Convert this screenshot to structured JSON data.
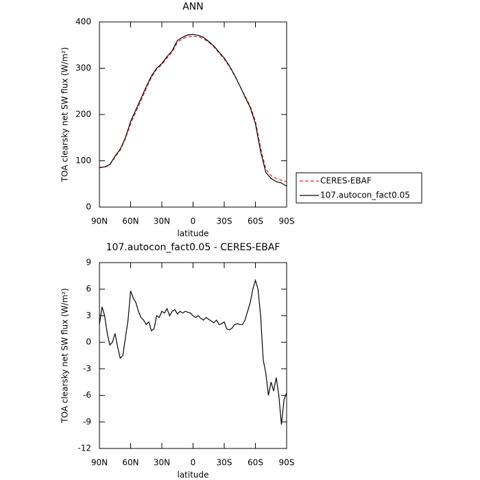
{
  "chart_data": [
    {
      "type": "line",
      "title": "ANN",
      "xlabel": "latitude",
      "ylabel": "TOA clearsky net SW flux (W/m²)",
      "x": [
        90,
        85,
        80,
        75,
        70,
        65,
        60,
        55,
        50,
        45,
        40,
        35,
        30,
        25,
        20,
        15,
        10,
        5,
        0,
        -5,
        -10,
        -15,
        -20,
        -25,
        -30,
        -35,
        -40,
        -45,
        -50,
        -55,
        -60,
        -65,
        -70,
        -75,
        -80,
        -85,
        -90
      ],
      "series": [
        {
          "name": "CERES-EBAF",
          "color": "#e02020",
          "dashed": true,
          "values": [
            86,
            86,
            91,
            108,
            123,
            148,
            180,
            205,
            230,
            256,
            280,
            298,
            308,
            322,
            335,
            356,
            364,
            368,
            369,
            368,
            364,
            356,
            346,
            333,
            320,
            303,
            284,
            262,
            240,
            218,
            186,
            128,
            82,
            68,
            62,
            58,
            55
          ]
        },
        {
          "name": "107.autocon_fact0.05",
          "color": "#000000",
          "dashed": false,
          "values": [
            85,
            87,
            92,
            110,
            125,
            150,
            185,
            210,
            235,
            260,
            283,
            300,
            310,
            325,
            338,
            360,
            367,
            372,
            373,
            371,
            367,
            358,
            348,
            335,
            322,
            305,
            285,
            262,
            238,
            215,
            180,
            120,
            75,
            62,
            55,
            52,
            45
          ]
        }
      ],
      "xlim": [
        90,
        -90
      ],
      "xticks": [
        {
          "value": 90,
          "label": "90N"
        },
        {
          "value": 60,
          "label": "60N"
        },
        {
          "value": 30,
          "label": "30N"
        },
        0,
        {
          "value": -30,
          "label": "30S"
        },
        {
          "value": -60,
          "label": "60S"
        },
        {
          "value": -90,
          "label": "90S"
        }
      ],
      "ylim": [
        0,
        400
      ],
      "yticks": [
        0,
        100,
        200,
        300,
        400
      ],
      "legend": "right"
    },
    {
      "type": "line",
      "title": "107.autocon_fact0.05 - CERES-EBAF",
      "xlabel": "latitude",
      "ylabel": "TOA clearsky net SW flux (W/m²)",
      "color": "#000000",
      "x": [
        90,
        87.5,
        85,
        82.5,
        80,
        77.5,
        75,
        72.5,
        70,
        67.5,
        65,
        62.5,
        60,
        57.5,
        55,
        52.5,
        50,
        47.5,
        45,
        42.5,
        40,
        37.5,
        35,
        32.5,
        30,
        27.5,
        25,
        22.5,
        20,
        17.5,
        15,
        12.5,
        10,
        7.5,
        5,
        2.5,
        0,
        -2.5,
        -5,
        -7.5,
        -10,
        -12.5,
        -15,
        -17.5,
        -20,
        -22.5,
        -25,
        -27.5,
        -30,
        -32.5,
        -35,
        -37.5,
        -40,
        -42.5,
        -45,
        -47.5,
        -50,
        -52.5,
        -55,
        -57.5,
        -60,
        -62.5,
        -65,
        -67.5,
        -70,
        -72.5,
        -75,
        -77.5,
        -80,
        -82.5,
        -85,
        -87.5,
        -90
      ],
      "values": [
        2,
        4,
        3,
        1,
        -0.3,
        0,
        1,
        -0.5,
        -1.8,
        -1.5,
        0.5,
        2.5,
        5.8,
        5,
        4.5,
        3.5,
        2.8,
        2.5,
        2,
        2.3,
        1.3,
        1.5,
        3,
        2.8,
        3.5,
        3.3,
        3.8,
        3,
        3.5,
        3.7,
        3.2,
        3.5,
        3.3,
        3.5,
        3.4,
        3.3,
        3,
        2.8,
        3,
        2.7,
        2.5,
        2.8,
        2.6,
        2.4,
        2.2,
        2.5,
        2,
        2.1,
        2.3,
        1.5,
        1.4,
        1.6,
        2,
        2.1,
        2,
        2,
        2.5,
        3.5,
        4.5,
        6,
        7,
        6,
        3,
        -2,
        -3.5,
        -6,
        -4.5,
        -5.5,
        -4,
        -6,
        -9.3,
        -6.5,
        -5.7
      ],
      "xlim": [
        90,
        -90
      ],
      "xticks": [
        {
          "value": 90,
          "label": "90N"
        },
        {
          "value": 60,
          "label": "60N"
        },
        {
          "value": 30,
          "label": "30N"
        },
        0,
        {
          "value": -30,
          "label": "30S"
        },
        {
          "value": -60,
          "label": "60S"
        },
        {
          "value": -90,
          "label": "90S"
        }
      ],
      "ylim": [
        -12,
        9
      ],
      "yticks": [
        -12,
        -9,
        -6,
        -3,
        0,
        3,
        6,
        9
      ]
    }
  ]
}
